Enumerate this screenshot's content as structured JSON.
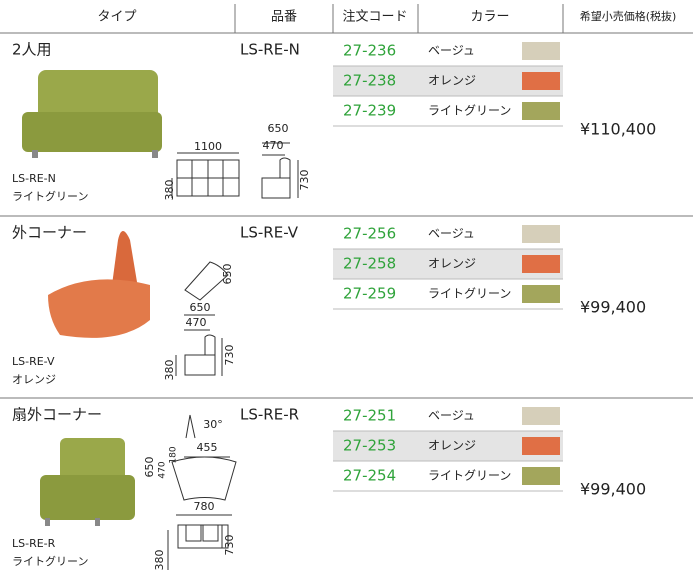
{
  "header": {
    "columns": [
      "タイプ",
      "品番",
      "注文コード",
      "カラー",
      "希望小売価格(税抜)"
    ]
  },
  "products": [
    {
      "name": "2人用",
      "code": "LS-RE-N",
      "caption_code": "LS-RE-N",
      "caption_color": "ライトグリーン",
      "price": "¥110,400",
      "variants": [
        {
          "order_code": "27-236",
          "color": "ベージュ"
        },
        {
          "order_code": "27-238",
          "color": "オレンジ"
        },
        {
          "order_code": "27-239",
          "color": "ライトグリーン"
        }
      ],
      "dimensions": [
        1100,
        650,
        470,
        380,
        730
      ]
    },
    {
      "name": "外コーナー",
      "code": "LS-RE-V",
      "caption_code": "LS-RE-V",
      "caption_color": "オレンジ",
      "price": "¥99,400",
      "variants": [
        {
          "order_code": "27-256",
          "color": "ベージュ"
        },
        {
          "order_code": "27-258",
          "color": "オレンジ"
        },
        {
          "order_code": "27-259",
          "color": "ライトグリーン"
        }
      ],
      "dimensions": [
        650,
        650,
        470,
        380,
        730
      ]
    },
    {
      "name": "扇外コーナー",
      "code": "LS-RE-R",
      "caption_code": "LS-RE-R",
      "caption_color": "ライトグリーン",
      "price": "¥99,400",
      "variants": [
        {
          "order_code": "27-251",
          "color": "ベージュ"
        },
        {
          "order_code": "27-253",
          "color": "オレンジ"
        },
        {
          "order_code": "27-254",
          "color": "ライトグリーン"
        }
      ],
      "dimensions": [
        "30°",
        650,
        470,
        180,
        455,
        780,
        380,
        730
      ]
    }
  ]
}
